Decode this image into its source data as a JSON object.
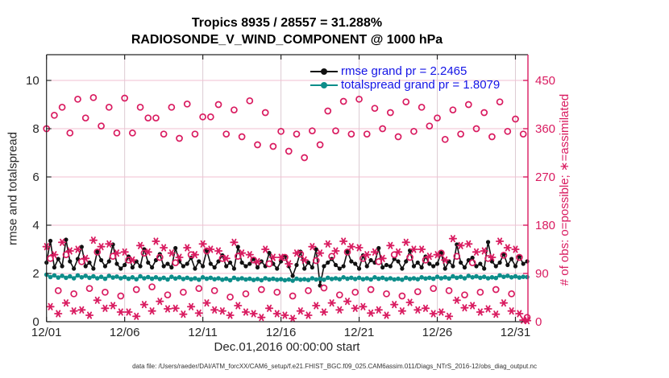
{
  "title": {
    "line1": "Tropics 8935 / 28557 = 31.288%",
    "line2": "RADIOSONDE_V_WIND_COMPONENT @ 1000 hPa"
  },
  "legend": {
    "rmse_label": "rmse grand pr = 2.2465",
    "totalspread_label": "totalspread grand pr = 1.8079"
  },
  "footer": "data file: /Users/raeder/DAI/ATM_forcXX/CAM6_setup/f.e21.FHIST_BGC.f09_025.CAM6assim.011/Diags_NTrS_2016-12/obs_diag_output.nc",
  "colors": {
    "crimson": "#d91b60",
    "teal": "#0d8d8a",
    "rmse_black": "#111111",
    "legend_blue": "#1414e6",
    "axis_dark": "#262626",
    "grid_h": "#f2bfd2",
    "grid_v": "#ddccd3"
  },
  "chart_data": {
    "type": "line",
    "title": "Tropics 8935 / 28557 = 31.288%  |  RADIOSONDE_V_WIND_COMPONENT @ 1000 hPa",
    "xlabel": "Dec.01,2016 00:00:00 start",
    "x_tick_labels": [
      "12/01",
      "12/06",
      "12/11",
      "12/16",
      "12/21",
      "12/26",
      "12/31"
    ],
    "x_tick_days": [
      0,
      5,
      10,
      15,
      20,
      25,
      30
    ],
    "x_range_days": [
      0,
      30.8
    ],
    "step_days": 0.25,
    "grid": true,
    "legend_position": "top-right-inside",
    "left_axis": {
      "label": "rmse and totalspread",
      "ticks": [
        0,
        2,
        4,
        6,
        8,
        10
      ],
      "range": [
        0,
        11.0667
      ]
    },
    "right_axis": {
      "label": "# of obs: o=possible; ∗=assimilated",
      "ticks": [
        0,
        90,
        180,
        270,
        360,
        450
      ],
      "range": [
        0,
        498
      ]
    },
    "series": [
      {
        "name": "rmse",
        "axis": "left",
        "style": "line-dot",
        "marker": "filled-circle",
        "color_key": "rmse_black",
        "grand_mean": 2.2465,
        "values": [
          2.45,
          3.35,
          2.25,
          2.6,
          2.3,
          3.4,
          2.5,
          2.2,
          2.6,
          3.1,
          2.3,
          2.45,
          2.2,
          2.9,
          2.55,
          2.3,
          2.5,
          3.2,
          2.4,
          2.2,
          2.35,
          2.7,
          2.25,
          2.5,
          2.3,
          3.0,
          2.45,
          2.25,
          2.55,
          2.8,
          2.3,
          2.4,
          2.25,
          3.05,
          2.5,
          2.3,
          2.4,
          2.65,
          2.2,
          2.5,
          2.3,
          2.95,
          2.4,
          2.25,
          2.5,
          2.75,
          2.3,
          2.45,
          2.2,
          3.1,
          2.45,
          2.3,
          2.4,
          2.6,
          2.25,
          2.5,
          2.3,
          2.85,
          2.4,
          2.2,
          2.5,
          2.7,
          2.3,
          1.9,
          2.35,
          2.9,
          2.2,
          2.45,
          2.25,
          3.0,
          1.5,
          2.3,
          2.45,
          2.6,
          2.35,
          2.2,
          2.3,
          2.9,
          2.5,
          2.4,
          2.2,
          2.75,
          2.3,
          2.55,
          2.45,
          3.05,
          2.25,
          2.35,
          2.3,
          2.6,
          2.5,
          2.2,
          2.5,
          2.95,
          2.3,
          2.45,
          2.25,
          2.7,
          2.4,
          2.3,
          2.4,
          2.85,
          2.2,
          2.5,
          2.3,
          3.2,
          2.45,
          2.25,
          2.55,
          2.65,
          2.3,
          2.4,
          2.2,
          3.3,
          2.5,
          2.3,
          2.45,
          2.8,
          2.35,
          2.6,
          2.3,
          2.7,
          2.4,
          2.5
        ]
      },
      {
        "name": "totalspread",
        "axis": "left",
        "style": "line-dot",
        "marker": "filled-circle",
        "color_key": "teal",
        "grand_mean": 1.8079,
        "values": [
          1.95,
          1.85,
          1.92,
          1.83,
          1.9,
          1.82,
          1.88,
          1.8,
          1.92,
          1.84,
          1.9,
          1.82,
          1.88,
          1.8,
          1.86,
          1.78,
          1.9,
          1.83,
          1.87,
          1.8,
          1.85,
          1.78,
          1.84,
          1.76,
          1.88,
          1.8,
          1.85,
          1.78,
          1.84,
          1.77,
          1.82,
          1.75,
          1.86,
          1.79,
          1.84,
          1.77,
          1.82,
          1.76,
          1.8,
          1.74,
          1.84,
          1.78,
          1.82,
          1.76,
          1.8,
          1.74,
          1.78,
          1.72,
          1.82,
          1.76,
          1.8,
          1.75,
          1.78,
          1.73,
          1.77,
          1.72,
          1.8,
          1.75,
          1.78,
          1.74,
          1.76,
          1.72,
          1.75,
          1.7,
          1.78,
          1.74,
          1.76,
          1.73,
          1.8,
          1.75,
          1.78,
          1.74,
          1.82,
          1.77,
          1.8,
          1.76,
          1.84,
          1.78,
          1.82,
          1.77,
          1.82,
          1.76,
          1.8,
          1.75,
          1.84,
          1.78,
          1.82,
          1.76,
          1.8,
          1.75,
          1.78,
          1.74,
          1.82,
          1.77,
          1.8,
          1.76,
          1.84,
          1.79,
          1.82,
          1.78,
          1.86,
          1.8,
          1.84,
          1.79,
          1.88,
          1.82,
          1.86,
          1.8,
          1.9,
          1.84,
          1.88,
          1.82,
          1.86,
          1.8,
          1.84,
          1.81,
          1.92,
          1.86,
          1.9,
          1.84,
          1.88,
          1.83,
          1.86,
          1.85
        ]
      },
      {
        "name": "possible_obs",
        "axis": "right",
        "style": "markers-only",
        "marker": "open-circle",
        "color_key": "crimson",
        "total": 28557,
        "values": [
          360,
          118,
          385,
          58,
          400,
          125,
          352,
          52,
          415,
          112,
          380,
          62,
          418,
          130,
          365,
          55,
          400,
          122,
          352,
          48,
          417,
          115,
          352,
          60,
          400,
          128,
          380,
          65,
          380,
          120,
          350,
          50,
          400,
          110,
          342,
          55,
          406,
          125,
          350,
          62,
          382,
          132,
          382,
          58,
          405,
          118,
          350,
          46,
          395,
          122,
          345,
          52,
          412,
          115,
          330,
          60,
          390,
          108,
          327,
          55,
          355,
          120,
          318,
          48,
          350,
          126,
          306,
          58,
          356,
          114,
          330,
          63,
          393,
          122,
          356,
          50,
          411,
          130,
          350,
          55,
          415,
          118,
          350,
          60,
          398,
          112,
          360,
          52,
          390,
          125,
          345,
          48,
          410,
          120,
          355,
          56,
          400,
          115,
          365,
          62,
          380,
          128,
          340,
          58,
          395,
          122,
          350,
          50,
          405,
          110,
          360,
          55,
          390,
          118,
          345,
          60,
          410,
          124,
          355,
          52,
          378,
          120,
          350,
          8
        ]
      },
      {
        "name": "assimilated_obs",
        "axis": "right",
        "style": "markers-only",
        "marker": "asterisk",
        "color_key": "crimson",
        "total": 8935,
        "values": [
          140,
          28,
          125,
          15,
          148,
          35,
          132,
          20,
          135,
          22,
          118,
          12,
          152,
          40,
          140,
          25,
          145,
          30,
          128,
          18,
          130,
          18,
          115,
          10,
          142,
          32,
          130,
          20,
          150,
          38,
          138,
          24,
          128,
          25,
          120,
          14,
          138,
          28,
          125,
          16,
          145,
          35,
          135,
          22,
          132,
          20,
          118,
          12,
          148,
          30,
          128,
          18,
          125,
          15,
          112,
          8,
          135,
          25,
          120,
          15,
          120,
          12,
          108,
          6,
          128,
          20,
          115,
          12,
          140,
          30,
          128,
          18,
          145,
          35,
          132,
          22,
          150,
          38,
          140,
          25,
          138,
          28,
          125,
          16,
          130,
          22,
          118,
          12,
          142,
          32,
          130,
          20,
          148,
          36,
          135,
          22,
          135,
          25,
          122,
          15,
          125,
          18,
          115,
          10,
          155,
          40,
          142,
          26,
          145,
          30,
          130,
          18,
          132,
          24,
          120,
          14,
          150,
          35,
          138,
          20,
          135,
          15,
          3,
          2
        ]
      }
    ]
  }
}
